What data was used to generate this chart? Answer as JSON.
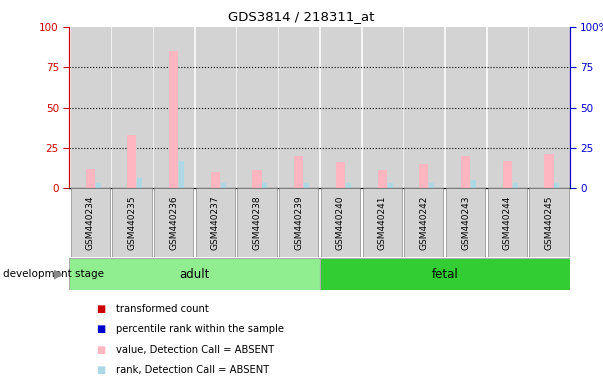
{
  "title": "GDS3814 / 218311_at",
  "samples": [
    "GSM440234",
    "GSM440235",
    "GSM440236",
    "GSM440237",
    "GSM440238",
    "GSM440239",
    "GSM440240",
    "GSM440241",
    "GSM440242",
    "GSM440243",
    "GSM440244",
    "GSM440245"
  ],
  "pink_bars": [
    12,
    33,
    85,
    10,
    11,
    20,
    16,
    11,
    15,
    20,
    17,
    21
  ],
  "blue_bars": [
    3,
    6,
    17,
    3,
    3,
    3,
    3,
    3,
    3,
    5,
    3,
    3
  ],
  "n_adult": 6,
  "n_fetal": 6,
  "ylim": [
    0,
    100
  ],
  "yticks": [
    0,
    25,
    50,
    75,
    100
  ],
  "left_axis_color": "#cc0000",
  "right_axis_color": "#0000cc",
  "sample_bg_color": "#d3d3d3",
  "plot_bg_color": "#ffffff",
  "adult_color": "#90ee90",
  "fetal_color": "#32cd32",
  "pink_bar_color": "#ffb6c1",
  "blue_bar_color": "#add8e6",
  "stage_border_color": "#aaaaaa",
  "bg_color": "#ffffff",
  "development_stage_label": "development stage",
  "adult_label": "adult",
  "fetal_label": "fetal",
  "legend_items": [
    {
      "label": "transformed count",
      "color": "#cc0000"
    },
    {
      "label": "percentile rank within the sample",
      "color": "#0000cc"
    },
    {
      "label": "value, Detection Call = ABSENT",
      "color": "#ffb6c1"
    },
    {
      "label": "rank, Detection Call = ABSENT",
      "color": "#add8e6"
    }
  ]
}
